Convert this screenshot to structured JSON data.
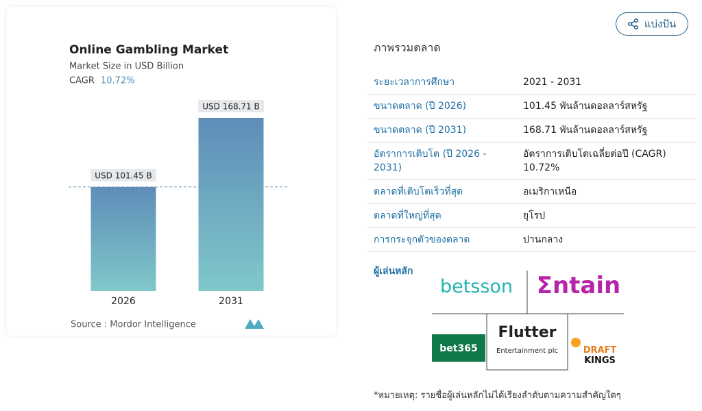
{
  "chart_data": {
    "type": "bar",
    "title": "Online Gambling Market",
    "subtitle": "Market Size in USD Billion",
    "cagr_label": "CAGR",
    "cagr": "10.72%",
    "categories": [
      "2026",
      "2031"
    ],
    "values": [
      101.45,
      168.71
    ],
    "value_labels": [
      "USD 101.45 B",
      "USD 168.71 B"
    ],
    "gradient": [
      "#5e8db8",
      "#80c8ca"
    ],
    "source": "Source :  Mordor Intelligence"
  },
  "share_button": "แบ่งปัน",
  "overview": {
    "title": "ภาพรวมตลาด",
    "rows": [
      [
        "ระยะเวลาการศึกษา",
        "2021 - 2031"
      ],
      [
        "ขนาดตลาด (ปี 2026)",
        "101.45 พันล้านดอลลาร์สหรัฐ"
      ],
      [
        "ขนาดตลาด (ปี 2031)",
        "168.71 พันล้านดอลลาร์สหรัฐ"
      ],
      [
        "อัตราการเติบโต (ปี 2026 - 2031)",
        "อัตราการเติบโตเฉลี่ยต่อปี (CAGR) 10.72%"
      ],
      [
        "ตลาดที่เติบโตเร็วที่สุด",
        "อเมริกาเหนือ"
      ],
      [
        "ตลาดที่ใหญ่ที่สุด",
        "ยุโรป"
      ],
      [
        "การกระจุกตัวของตลาด",
        "ปานกลาง"
      ]
    ]
  },
  "key_players": {
    "title": "ผู้เล่นหลัก",
    "logos": [
      "betsson",
      "Σntain",
      "bet365",
      "Flutter",
      "Entertainment plc",
      "DRAFT",
      "KINGS"
    ]
  },
  "note": "*หมายเหตุ: รายชื่อผู้เล่นหลักไม่ได้เรียงลำดับตามความสำคัญใดๆ"
}
